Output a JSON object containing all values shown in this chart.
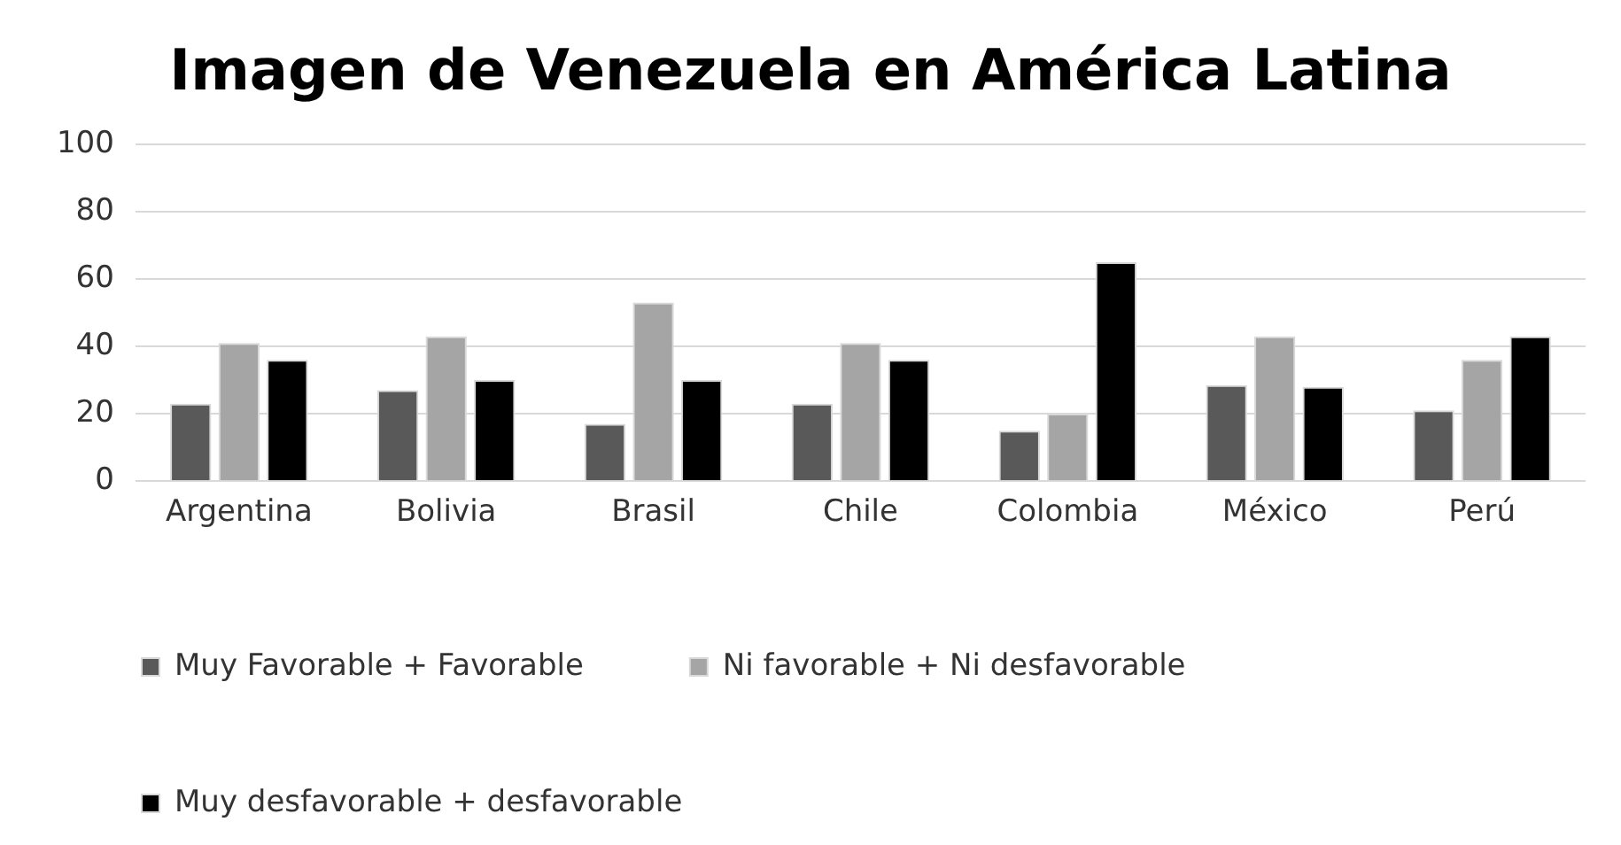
{
  "chart_data": {
    "type": "bar",
    "title": "Imagen de Venezuela en América Latina",
    "categories": [
      "Argentina",
      "Bolivia",
      "Brasil",
      "Chile",
      "Colombia",
      "México",
      "Perú"
    ],
    "series": [
      {
        "name": "Muy Favorable + Favorable",
        "color": "#595959",
        "values": [
          23,
          27,
          17,
          23,
          15,
          28.5,
          21
        ]
      },
      {
        "name": "Ni favorable + Ni desfavorable",
        "color": "#a5a5a5",
        "values": [
          41,
          43,
          53,
          41,
          20,
          43,
          36
        ]
      },
      {
        "name": "Muy desfavorable + desfavorable",
        "color": "#000000",
        "values": [
          36,
          30,
          30,
          36,
          65,
          28,
          43
        ]
      }
    ],
    "ylim": [
      0,
      100
    ],
    "yticks": [
      0,
      20,
      40,
      60,
      80,
      100
    ],
    "grid": "y",
    "legend": "bottom"
  }
}
